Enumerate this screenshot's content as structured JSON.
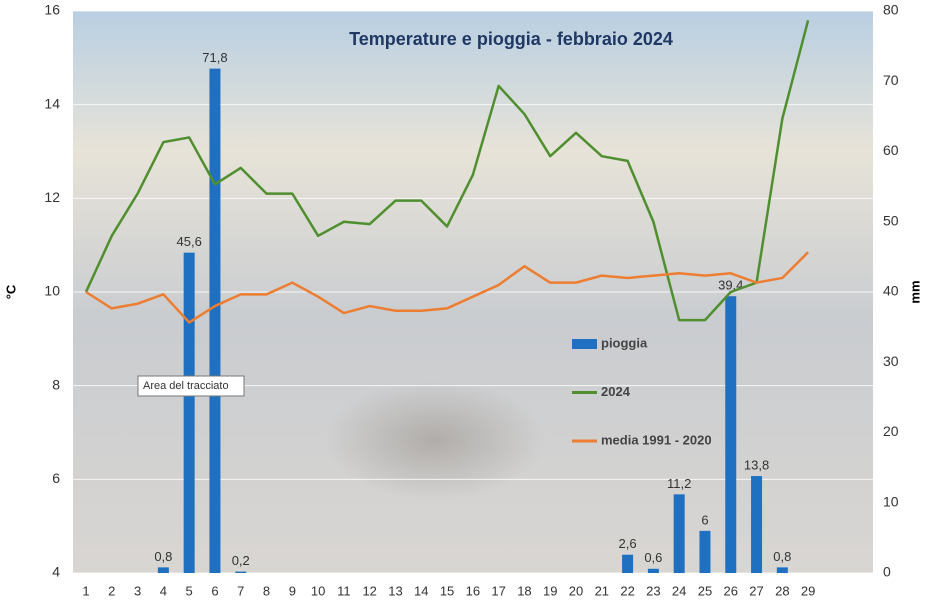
{
  "chart_data": {
    "type": "combo",
    "title": "Temperature e pioggia - febbraio 2024",
    "y_label": "°C",
    "y2_label": "mm",
    "tooltip": "Area del tracciato",
    "categories": [
      "1",
      "2",
      "3",
      "4",
      "5",
      "6",
      "7",
      "8",
      "9",
      "10",
      "11",
      "12",
      "13",
      "14",
      "15",
      "16",
      "17",
      "18",
      "19",
      "20",
      "21",
      "22",
      "23",
      "24",
      "25",
      "26",
      "27",
      "28",
      "29"
    ],
    "ylim": [
      4,
      16
    ],
    "yticks": [
      4,
      6,
      8,
      10,
      12,
      14,
      16
    ],
    "y2lim": [
      0,
      80
    ],
    "y2ticks": [
      0,
      10,
      20,
      30,
      40,
      50,
      60,
      70,
      80
    ],
    "grid": true,
    "series": [
      {
        "name": "pioggia",
        "type": "bar",
        "axis": "y2",
        "color": "#1f70c1",
        "values": [
          0,
          0,
          0,
          0.8,
          45.6,
          71.8,
          0.2,
          0,
          0,
          0,
          0,
          0,
          0,
          0,
          0,
          0,
          0,
          0,
          0,
          0,
          0,
          2.6,
          0.6,
          11.2,
          6,
          39.4,
          13.8,
          0.8,
          0
        ],
        "value_labels": [
          null,
          null,
          null,
          "0,8",
          "45,6",
          "71,8",
          "0,2",
          null,
          null,
          null,
          null,
          null,
          null,
          null,
          null,
          null,
          null,
          null,
          null,
          null,
          null,
          "2,6",
          "0,6",
          "11,2",
          "6",
          "39,4",
          "13,8",
          "0,8",
          null
        ]
      },
      {
        "name": "2024",
        "type": "line",
        "color": "#4f8f2f",
        "values": [
          10.0,
          11.2,
          12.1,
          13.2,
          13.3,
          12.3,
          12.65,
          12.1,
          12.1,
          11.2,
          11.5,
          11.45,
          11.95,
          11.95,
          11.4,
          12.5,
          14.4,
          13.8,
          12.9,
          13.4,
          12.9,
          12.8,
          11.5,
          9.4,
          9.4,
          10.0,
          10.2,
          13.7,
          15.8
        ]
      },
      {
        "name": "media 1991 - 2020",
        "type": "line",
        "color": "#ed7d31",
        "values": [
          10.0,
          9.65,
          9.75,
          9.95,
          9.35,
          9.7,
          9.95,
          9.95,
          10.2,
          9.9,
          9.55,
          9.7,
          9.6,
          9.6,
          9.65,
          9.9,
          10.15,
          10.55,
          10.2,
          10.2,
          10.35,
          10.3,
          10.35,
          10.4,
          10.35,
          10.4,
          10.2,
          10.3,
          10.85
        ]
      }
    ]
  }
}
